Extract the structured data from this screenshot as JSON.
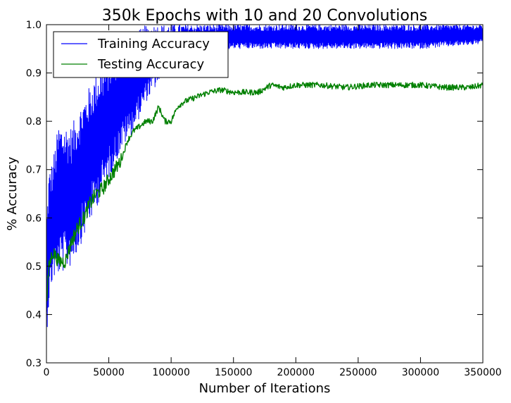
{
  "chart_data": {
    "type": "line",
    "title": "350k Epochs with 10 and 20 Convolutions",
    "xlabel": "Number of Iterations",
    "ylabel": "% Accuracy",
    "xlim": [
      0,
      350000
    ],
    "ylim": [
      0.3,
      1.0
    ],
    "xticks": [
      0,
      50000,
      100000,
      150000,
      200000,
      250000,
      300000,
      350000
    ],
    "xtick_labels": [
      "0",
      "50000",
      "100000",
      "150000",
      "200000",
      "250000",
      "300000",
      "350000"
    ],
    "yticks": [
      0.3,
      0.4,
      0.5,
      0.6,
      0.7,
      0.8,
      0.9,
      1.0
    ],
    "ytick_labels": [
      "0.3",
      "0.4",
      "0.5",
      "0.6",
      "0.7",
      "0.8",
      "0.9",
      "1.0"
    ],
    "grid": false,
    "legend": {
      "placement": "top-left"
    },
    "series": [
      {
        "name": "Training Accuracy",
        "color": "#0000ff",
        "x": [
          0,
          2000,
          5000,
          10000,
          20000,
          30000,
          40000,
          50000,
          60000,
          70000,
          80000,
          90000,
          100000,
          110000,
          120000,
          150000,
          200000,
          250000,
          300000,
          350000
        ],
        "y_min": [
          0.35,
          0.42,
          0.47,
          0.48,
          0.5,
          0.56,
          0.62,
          0.68,
          0.74,
          0.78,
          0.84,
          0.88,
          0.91,
          0.93,
          0.94,
          0.95,
          0.95,
          0.95,
          0.95,
          0.96
        ],
        "y_max": [
          0.6,
          0.7,
          0.72,
          0.8,
          0.79,
          0.85,
          0.9,
          0.93,
          0.96,
          0.98,
          1.0,
          1.0,
          1.0,
          1.0,
          1.0,
          1.0,
          1.0,
          1.0,
          1.0,
          1.0
        ]
      },
      {
        "name": "Testing Accuracy",
        "color": "#008000",
        "x": [
          0,
          2000,
          5000,
          10000,
          15000,
          20000,
          25000,
          30000,
          35000,
          40000,
          45000,
          50000,
          55000,
          60000,
          65000,
          70000,
          75000,
          80000,
          85000,
          90000,
          95000,
          100000,
          105000,
          110000,
          115000,
          120000,
          130000,
          140000,
          150000,
          160000,
          170000,
          180000,
          190000,
          200000,
          220000,
          240000,
          260000,
          280000,
          300000,
          320000,
          340000,
          350000
        ],
        "y": [
          0.42,
          0.5,
          0.53,
          0.51,
          0.51,
          0.55,
          0.58,
          0.6,
          0.63,
          0.65,
          0.66,
          0.68,
          0.7,
          0.72,
          0.76,
          0.78,
          0.79,
          0.8,
          0.8,
          0.83,
          0.8,
          0.8,
          0.83,
          0.84,
          0.845,
          0.85,
          0.86,
          0.865,
          0.86,
          0.86,
          0.86,
          0.875,
          0.87,
          0.875,
          0.875,
          0.87,
          0.875,
          0.875,
          0.875,
          0.87,
          0.87,
          0.875
        ],
        "noise": 0.006
      }
    ]
  }
}
